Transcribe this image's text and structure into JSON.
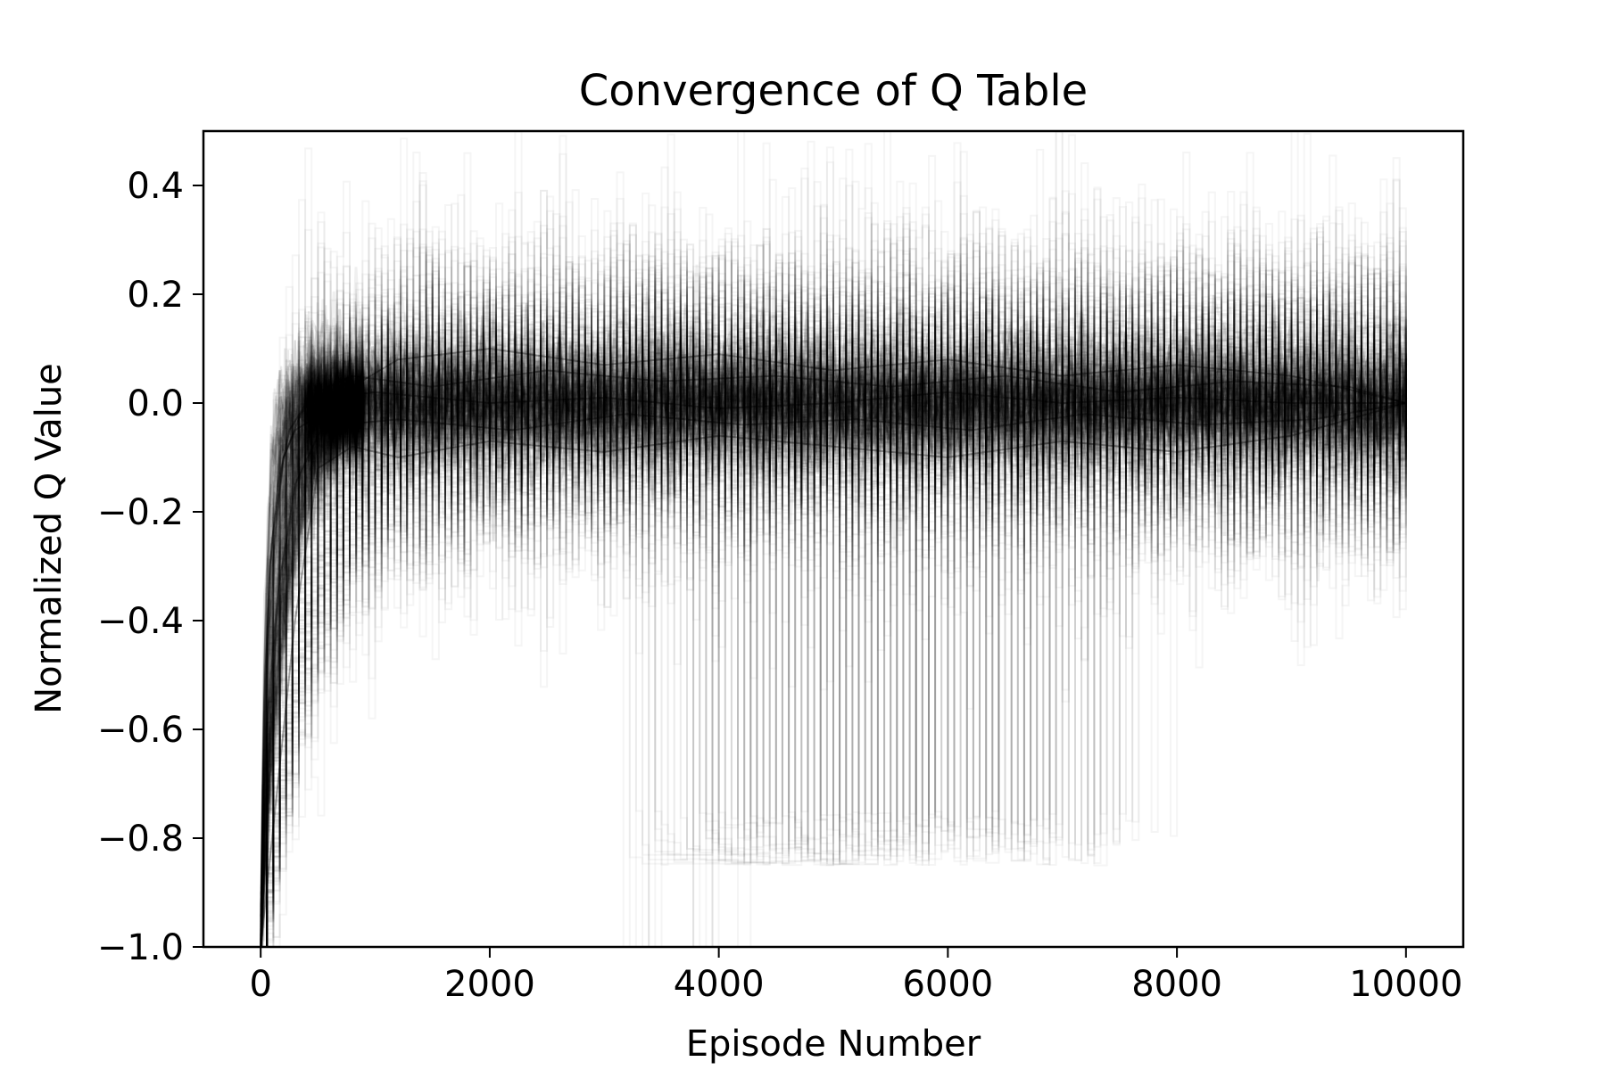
{
  "chart_data": {
    "type": "line",
    "title": "Convergence of Q Table",
    "xlabel": "Episode Number",
    "ylabel": "Normalized Q Value",
    "xlim": [
      -500,
      10500
    ],
    "ylim": [
      -1.0,
      0.5
    ],
    "x_ticks": [
      0,
      2000,
      4000,
      6000,
      8000,
      10000
    ],
    "x_tick_labels": [
      "0",
      "2000",
      "4000",
      "6000",
      "8000",
      "10000"
    ],
    "y_ticks": [
      -1.0,
      -0.8,
      -0.6,
      -0.4,
      -0.2,
      0.0,
      0.2,
      0.4
    ],
    "y_tick_labels": [
      "−1.0",
      "−0.8",
      "−0.6",
      "−0.4",
      "−0.2",
      "0.0",
      "0.2",
      "0.4"
    ],
    "grid": false,
    "legend": "none",
    "series_color": "#000000",
    "series_opacity": 0.04,
    "x_range": [
      0,
      10000
    ],
    "start_value": -1.0,
    "end_value": 0.0,
    "series": [
      {
        "x": [
          0,
          30,
          80,
          150,
          250,
          400,
          600,
          1000,
          2000,
          3000,
          4000,
          5000,
          6000,
          7000,
          8000,
          9000,
          10000
        ],
        "values": [
          -1.0,
          -0.55,
          -0.3,
          -0.15,
          -0.05,
          0.0,
          0.01,
          0.02,
          0.0,
          0.01,
          -0.01,
          0.0,
          0.02,
          0.0,
          0.01,
          0.0,
          0.0
        ]
      },
      {
        "x": [
          0,
          20,
          60,
          120,
          200,
          350,
          500,
          800,
          1500,
          2500,
          3500,
          4500,
          5500,
          6500,
          7500,
          8500,
          9500,
          10000
        ],
        "values": [
          -1.0,
          -0.7,
          -0.45,
          -0.25,
          -0.1,
          -0.02,
          0.02,
          0.05,
          0.03,
          0.06,
          0.04,
          0.05,
          0.03,
          0.05,
          0.02,
          0.04,
          0.03,
          0.0
        ]
      },
      {
        "x": [
          0,
          40,
          100,
          200,
          300,
          450,
          700,
          1200,
          2200,
          3200,
          4200,
          5200,
          6200,
          7200,
          8200,
          9200,
          10000
        ],
        "values": [
          -1.0,
          -0.5,
          -0.25,
          -0.1,
          -0.05,
          -0.03,
          -0.04,
          -0.03,
          -0.05,
          -0.02,
          -0.04,
          -0.03,
          -0.05,
          -0.02,
          -0.04,
          -0.03,
          0.0
        ]
      },
      {
        "x": [
          0,
          50,
          150,
          300,
          500,
          800,
          1200,
          2000,
          3000,
          4000,
          5000,
          6000,
          7000,
          8000,
          9000,
          10000
        ],
        "values": [
          -1.0,
          -0.6,
          -0.35,
          -0.15,
          -0.06,
          0.03,
          0.08,
          0.1,
          0.07,
          0.09,
          0.06,
          0.08,
          0.05,
          0.07,
          0.05,
          0.0
        ]
      },
      {
        "x": [
          0,
          100,
          300,
          500,
          800,
          1200,
          2000,
          3000,
          4000,
          5000,
          6000,
          7000,
          8000,
          9000,
          10000
        ],
        "values": [
          -1.0,
          -0.8,
          -0.4,
          -0.12,
          -0.08,
          -0.1,
          -0.07,
          -0.09,
          -0.06,
          -0.08,
          -0.1,
          -0.07,
          -0.09,
          -0.06,
          0.0
        ]
      }
    ]
  }
}
